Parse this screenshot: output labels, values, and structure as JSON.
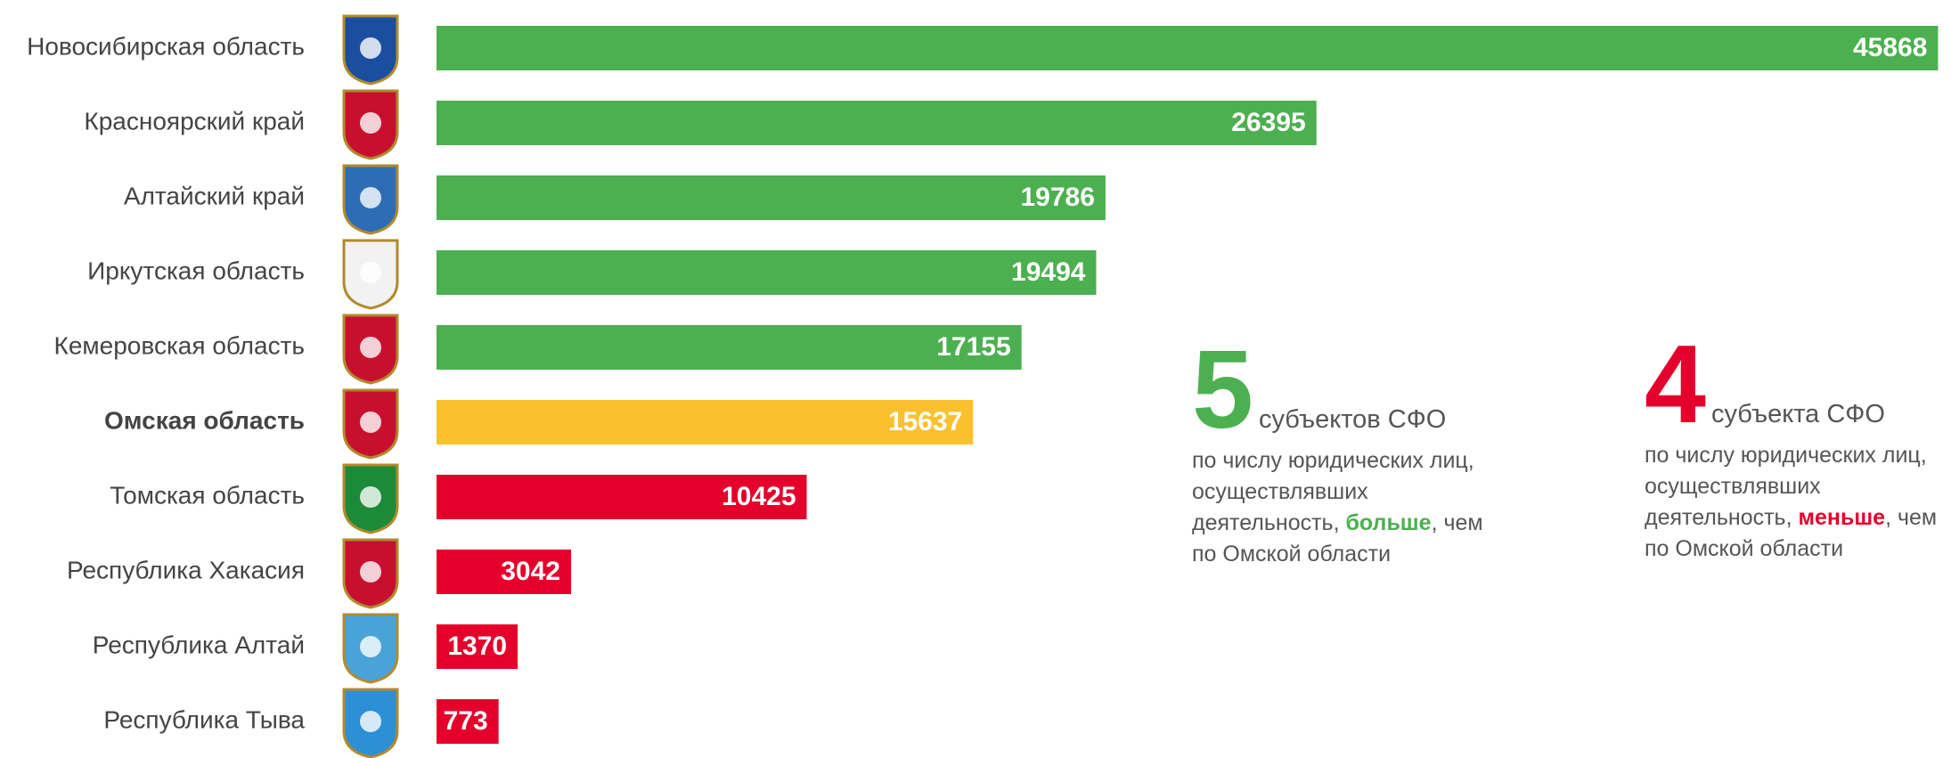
{
  "chart_data": {
    "type": "barh",
    "categories": [
      "Новосибирская область",
      "Красноярский край",
      "Алтайский край",
      "Иркутская область",
      "Кемеровская область",
      "Омская область",
      "Томская область",
      "Республика Хакасия",
      "Республика Алтай",
      "Республика Тыва"
    ],
    "values": [
      45868,
      26395,
      19786,
      19494,
      17155,
      15637,
      10425,
      3042,
      1370,
      773
    ],
    "colors": [
      "#4caf50",
      "#4caf50",
      "#4caf50",
      "#4caf50",
      "#4caf50",
      "#fbc02d",
      "#e4002b",
      "#e4002b",
      "#e4002b",
      "#e4002b"
    ],
    "highlight_index": 5,
    "annotations": [
      {
        "number": "5",
        "unit": "субъектов СФО",
        "text_before": "по числу юридических лиц, осуществлявших деятельность, ",
        "emphasis": "больше",
        "text_after": ", чем по Омской области",
        "color": "#4caf50"
      },
      {
        "number": "4",
        "unit": "субъекта СФО",
        "text_before": "по числу юридических лиц, осуществлявших деятельность, ",
        "emphasis": "меньше",
        "text_after": ", чем по Омской области",
        "color": "#e4002b"
      }
    ]
  }
}
